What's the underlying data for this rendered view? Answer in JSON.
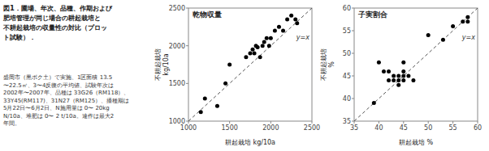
{
  "title": "図1．圃場、年次、品種、作期および\n肥培管理が同じ場合の耕起栽培と\n不耕起栽培の収量性の対比（プロッ\nト試験）．",
  "subtitle": "盛岡市（黒ボク土）で実施、1区面積 13.5\n〜22.5㎡、3〜4反復の平均値、試験年次は\n2002年〜2007年、品種は 33G26（RM118）、\n33Y45(RM117)、31N27（RM125）、播種期は\n5月22日〜6月2日、N施用量は 0〜 20kg\nN/10a、堆肥は 0〜 2 t/10a。連作は最大2\n年間。",
  "chart_data": [
    {
      "type": "scatter",
      "title": "乾物収量",
      "x_label": "耕起栽培 kg/10a",
      "y_label": [
        "不耕起栽培",
        "kg/10a"
      ],
      "annotations": [
        "y=x"
      ],
      "color": "#000000",
      "grid": false,
      "xlim": [
        1000,
        2500
      ],
      "ylim": [
        1000,
        2500
      ],
      "xticks": [
        1000,
        1500,
        2000,
        2500
      ],
      "yticks": [
        1000,
        1500,
        2000,
        2500
      ],
      "x": [
        1150,
        1200,
        1350,
        1450,
        1500,
        1700,
        1750,
        1780,
        1800,
        1820,
        1840,
        1870,
        1900,
        1920,
        1950,
        1980,
        2000,
        2050,
        2100,
        2150,
        2200,
        2250,
        2300,
        2320
      ],
      "values": [
        1120,
        1300,
        1200,
        1500,
        1750,
        1850,
        1900,
        1950,
        1900,
        2000,
        1980,
        1850,
        2000,
        2050,
        2100,
        2000,
        2100,
        2200,
        2250,
        2200,
        2350,
        2400,
        2350,
        2300
      ]
    },
    {
      "type": "scatter",
      "title": "子実割合",
      "x_label": "耕起栽培 %",
      "y_label": [
        "不耕起栽培",
        "%"
      ],
      "annotations": [
        "y=x"
      ],
      "color": "#000000",
      "grid": false,
      "xlim": [
        35,
        60
      ],
      "ylim": [
        35,
        60
      ],
      "xticks": [
        35,
        40,
        45,
        50,
        55,
        60
      ],
      "yticks": [
        35,
        40,
        45,
        50,
        55,
        60
      ],
      "x": [
        39,
        40,
        41,
        42,
        42,
        43,
        43,
        44,
        44,
        44,
        45,
        45,
        45,
        45,
        46,
        47,
        50,
        53,
        55,
        57,
        58,
        58
      ],
      "values": [
        39,
        48,
        46,
        44,
        46,
        44,
        45,
        43,
        44,
        45,
        44,
        45,
        46,
        48,
        45,
        44,
        54,
        53,
        56,
        57,
        57,
        58
      ]
    }
  ]
}
